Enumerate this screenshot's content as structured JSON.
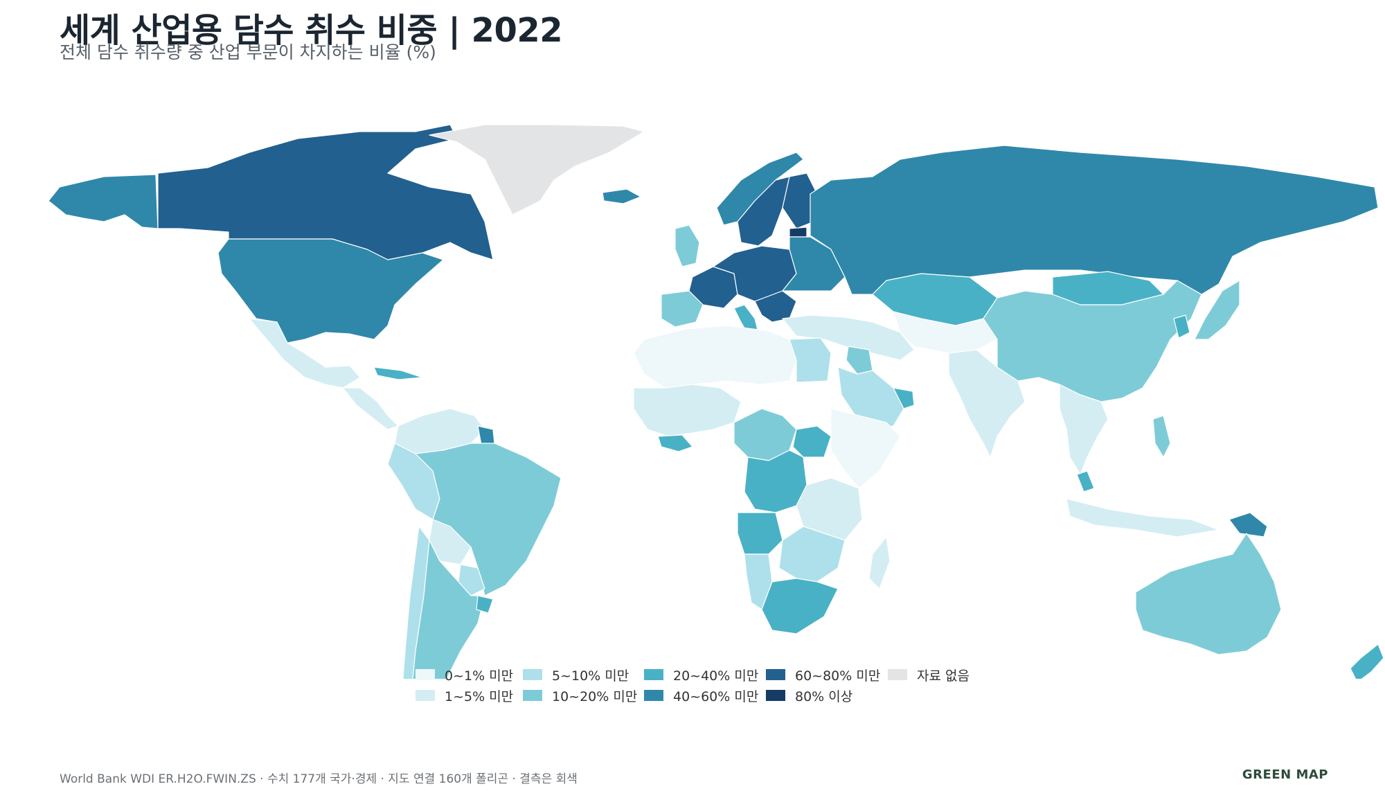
{
  "title": "세계 산업용 담수 취수 비중 | 2022",
  "subtitle": "전체 담수 취수량 중 산업 부문이 차지하는 비율 (%)",
  "legend": [
    {
      "label": "0~1% 미만",
      "color": "#eef7fa"
    },
    {
      "label": "5~10% 미만",
      "color": "#ade0ea"
    },
    {
      "label": "20~40% 미만",
      "color": "#49b1c5"
    },
    {
      "label": "60~80% 미만",
      "color": "#22608f"
    },
    {
      "label": "자료 없음",
      "color": "#e3e4e6"
    },
    {
      "label": "1~5% 미만",
      "color": "#d3edf3"
    },
    {
      "label": "10~20% 미만",
      "color": "#7ecbd8"
    },
    {
      "label": "40~60% 미만",
      "color": "#2f88aa"
    },
    {
      "label": "80% 이상",
      "color": "#163c66"
    }
  ],
  "map_data": {
    "metric": "industrial freshwater withdrawal share (%)",
    "year": 2022,
    "regions": [
      {
        "name": "Canada",
        "class": "60~80% 미만"
      },
      {
        "name": "Alaska",
        "class": "40~60% 미만"
      },
      {
        "name": "United States",
        "class": "40~60% 미만"
      },
      {
        "name": "Greenland",
        "class": "자료 없음"
      },
      {
        "name": "Iceland",
        "class": "40~60% 미만"
      },
      {
        "name": "Mexico",
        "class": "1~5% 미만"
      },
      {
        "name": "Central America",
        "class": "1~5% 미만"
      },
      {
        "name": "Caribbean",
        "class": "20~40% 미만"
      },
      {
        "name": "Colombia / Venezuela",
        "class": "1~5% 미만"
      },
      {
        "name": "French Guiana",
        "class": "40~60% 미만"
      },
      {
        "name": "Brazil",
        "class": "10~20% 미만"
      },
      {
        "name": "Peru / Ecuador",
        "class": "5~10% 미만"
      },
      {
        "name": "Bolivia",
        "class": "1~5% 미만"
      },
      {
        "name": "Chile",
        "class": "5~10% 미만"
      },
      {
        "name": "Argentina",
        "class": "10~20% 미만"
      },
      {
        "name": "Paraguay",
        "class": "5~10% 미만"
      },
      {
        "name": "Uruguay",
        "class": "20~40% 미만"
      },
      {
        "name": "Scandinavia",
        "class": "40~60% 미만"
      },
      {
        "name": "Sweden",
        "class": "60~80% 미만"
      },
      {
        "name": "Finland",
        "class": "60~80% 미만"
      },
      {
        "name": "Estonia",
        "class": "80% 이상"
      },
      {
        "name": "United Kingdom / Ireland",
        "class": "10~20% 미만"
      },
      {
        "name": "France",
        "class": "60~80% 미만"
      },
      {
        "name": "Central Europe",
        "class": "60~80% 미만"
      },
      {
        "name": "Eastern Europe",
        "class": "40~60% 미만"
      },
      {
        "name": "Iberia",
        "class": "10~20% 미만"
      },
      {
        "name": "Italy",
        "class": "20~40% 미만"
      },
      {
        "name": "Balkans",
        "class": "60~80% 미만"
      },
      {
        "name": "Russia",
        "class": "40~60% 미만"
      },
      {
        "name": "Kazakhstan",
        "class": "20~40% 미만"
      },
      {
        "name": "Mongolia",
        "class": "20~40% 미만"
      },
      {
        "name": "China",
        "class": "10~20% 미만"
      },
      {
        "name": "Japan",
        "class": "10~20% 미만"
      },
      {
        "name": "Korea",
        "class": "20~40% 미만"
      },
      {
        "name": "Turkey",
        "class": "1~5% 미만"
      },
      {
        "name": "Middle East",
        "class": "1~5% 미만"
      },
      {
        "name": "Iraq",
        "class": "10~20% 미만"
      },
      {
        "name": "Saudi Arabia",
        "class": "5~10% 미만"
      },
      {
        "name": "Oman",
        "class": "20~40% 미만"
      },
      {
        "name": "Central Asia",
        "class": "0~1% 미만"
      },
      {
        "name": "India",
        "class": "1~5% 미만"
      },
      {
        "name": "Southeast Asia",
        "class": "1~5% 미만"
      },
      {
        "name": "Malaysia",
        "class": "20~40% 미만"
      },
      {
        "name": "Indonesia",
        "class": "1~5% 미만"
      },
      {
        "name": "Philippines",
        "class": "10~20% 미만"
      },
      {
        "name": "Papua New Guinea",
        "class": "40~60% 미만"
      },
      {
        "name": "Australia",
        "class": "10~20% 미만"
      },
      {
        "name": "New Zealand",
        "class": "20~40% 미만"
      },
      {
        "name": "North Africa",
        "class": "0~1% 미만"
      },
      {
        "name": "Egypt",
        "class": "5~10% 미만"
      },
      {
        "name": "West Africa",
        "class": "1~5% 미만"
      },
      {
        "name": "Gulf of Guinea",
        "class": "20~40% 미만"
      },
      {
        "name": "Central Africa",
        "class": "10~20% 미만"
      },
      {
        "name": "DR Congo",
        "class": "20~40% 미만"
      },
      {
        "name": "South Sudan",
        "class": "20~40% 미만"
      },
      {
        "name": "Horn of Africa",
        "class": "0~1% 미만"
      },
      {
        "name": "East Africa",
        "class": "1~5% 미만"
      },
      {
        "name": "Angola",
        "class": "20~40% 미만"
      },
      {
        "name": "Namibia",
        "class": "5~10% 미만"
      },
      {
        "name": "Southern Africa interior",
        "class": "5~10% 미만"
      },
      {
        "name": "South Africa",
        "class": "20~40% 미만"
      },
      {
        "name": "Madagascar",
        "class": "1~5% 미만"
      }
    ]
  },
  "footer": {
    "source": "World Bank WDI ER.H2O.FWIN.ZS · 수치 177개 국가·경제 · 지도 연결 160개 폴리곤 · 결측은 회색",
    "brand": "GREEN MAP"
  }
}
